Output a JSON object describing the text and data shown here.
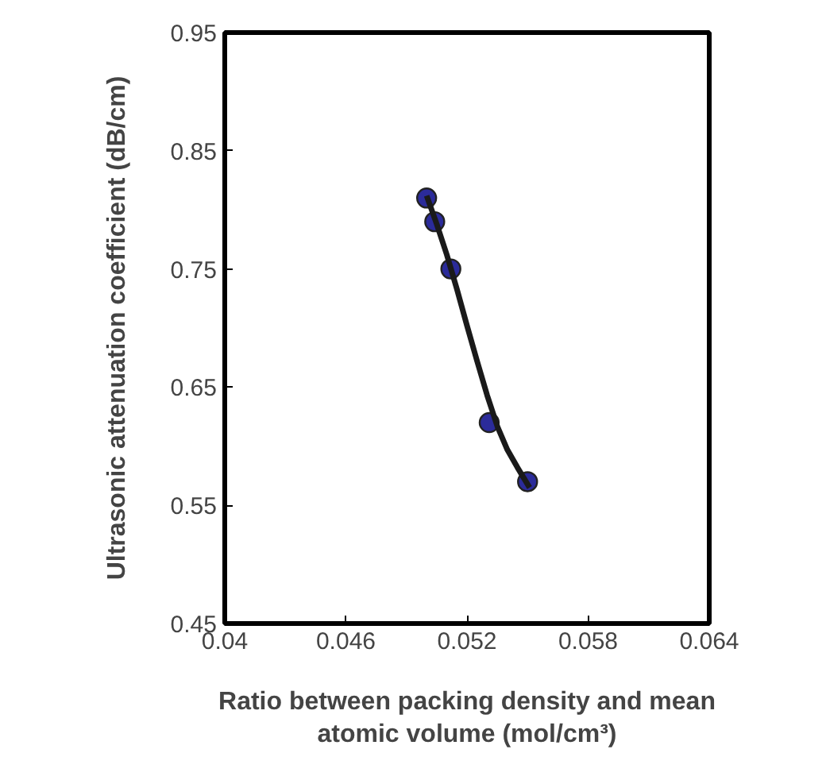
{
  "chart_data": {
    "type": "scatter",
    "xlabel": "Ratio between packing density and mean\natomic volume (mol/cm³)",
    "ylabel": "Ultrasonic attenuation coefficient (dB/cm)",
    "x": [
      0.05,
      0.0504,
      0.0512,
      0.0531,
      0.055
    ],
    "series": [
      {
        "color": "#2b2b9a",
        "values": [
          0.81,
          0.79,
          0.75,
          0.62,
          0.57
        ],
        "marker": "circle"
      },
      {
        "type": "line",
        "color": "#1a1a1a",
        "x": [
          0.05,
          0.0505,
          0.051,
          0.0515,
          0.052,
          0.0525,
          0.053,
          0.0535,
          0.054,
          0.0545,
          0.0551
        ],
        "values": [
          0.812,
          0.788,
          0.762,
          0.733,
          0.702,
          0.672,
          0.643,
          0.617,
          0.597,
          0.582,
          0.565
        ],
        "marker": "none",
        "line_style": "solid"
      }
    ],
    "xlim": [
      0.04,
      0.064
    ],
    "xticks": [
      0.04,
      0.046,
      0.052,
      0.058,
      0.064
    ],
    "ylim": [
      0.45,
      0.95
    ],
    "yticks": [
      0.45,
      0.55,
      0.65,
      0.75,
      0.85,
      0.95
    ],
    "grid": false
  }
}
